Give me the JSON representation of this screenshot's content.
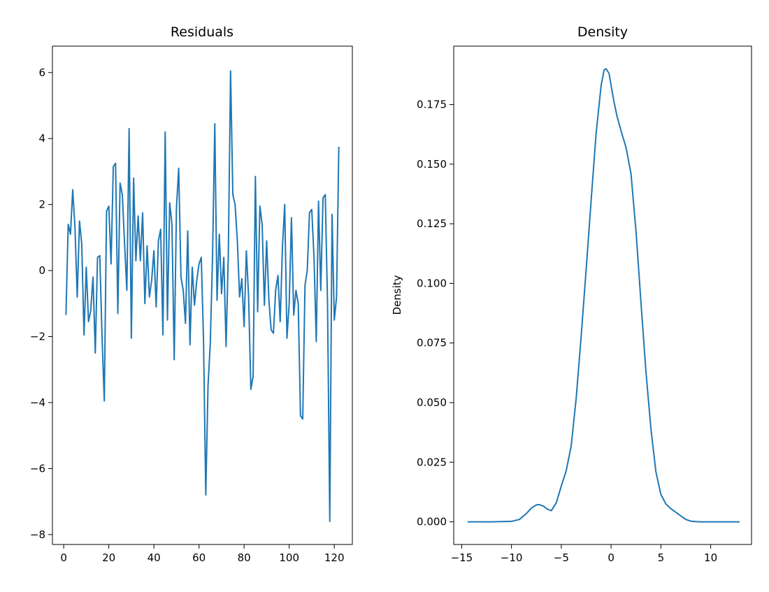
{
  "chart_data": [
    {
      "type": "line",
      "title": "Residuals",
      "xlabel": "",
      "ylabel": "",
      "xlim": [
        -5,
        128
      ],
      "ylim": [
        -8.3,
        6.8
      ],
      "xticks": [
        0,
        20,
        40,
        60,
        80,
        100,
        120
      ],
      "yticks": [
        -8,
        -6,
        -4,
        -2,
        0,
        2,
        4,
        6
      ],
      "xtick_labels": [
        "0",
        "20",
        "40",
        "60",
        "80",
        "100",
        "120"
      ],
      "ytick_labels": [
        "−8",
        "−6",
        "−4",
        "−2",
        "0",
        "2",
        "4",
        "6"
      ],
      "color": "#1f77b4",
      "grid": false,
      "series": [
        {
          "x": [
            1,
            2,
            3,
            4,
            5,
            6,
            7,
            8,
            9,
            10,
            11,
            12,
            13,
            14,
            15,
            16,
            17,
            18,
            19,
            20,
            21,
            22,
            23,
            24,
            25,
            26,
            27,
            28,
            29,
            30,
            31,
            32,
            33,
            34,
            35,
            36,
            37,
            38,
            39,
            40,
            41,
            42,
            43,
            44,
            45,
            46,
            47,
            48,
            49,
            50,
            51,
            52,
            53,
            54,
            55,
            56,
            57,
            58,
            59,
            60,
            61,
            62,
            63,
            64,
            65,
            66,
            67,
            68,
            69,
            70,
            71,
            72,
            73,
            74,
            75,
            76,
            77,
            78,
            79,
            80,
            81,
            82,
            83,
            84,
            85,
            86,
            87,
            88,
            89,
            90,
            91,
            92,
            93,
            94,
            95,
            96,
            97,
            98,
            99,
            100,
            101,
            102,
            103,
            104,
            105,
            106,
            107,
            108,
            109,
            110,
            111,
            112,
            113,
            114,
            115,
            116,
            117,
            118,
            119,
            120,
            121,
            122
          ],
          "y": [
            -1.35,
            1.4,
            1.1,
            2.45,
            1.3,
            -0.8,
            1.5,
            0.8,
            -1.95,
            0.1,
            -1.55,
            -1.2,
            -0.2,
            -2.5,
            0.4,
            0.45,
            -2.0,
            -3.95,
            1.8,
            1.95,
            0.2,
            3.15,
            3.25,
            -1.3,
            2.65,
            2.3,
            0.8,
            -0.6,
            4.3,
            -2.05,
            2.8,
            0.3,
            1.65,
            0.3,
            1.75,
            -1.0,
            0.75,
            -0.8,
            -0.3,
            0.6,
            -1.1,
            0.9,
            1.25,
            -1.95,
            4.2,
            -1.5,
            2.05,
            1.4,
            -2.7,
            1.9,
            3.1,
            -0.2,
            -0.6,
            -1.6,
            1.2,
            -2.25,
            0.1,
            -1.05,
            -0.3,
            0.2,
            0.4,
            -2.1,
            -6.8,
            -3.5,
            -2.2,
            0.4,
            4.45,
            -0.9,
            1.1,
            -0.7,
            0.4,
            -2.3,
            0.5,
            6.05,
            2.3,
            2.0,
            0.9,
            -0.8,
            -0.25,
            -1.7,
            0.6,
            -0.8,
            -3.6,
            -3.2,
            2.85,
            -1.25,
            1.95,
            1.4,
            -1.05,
            0.9,
            -0.9,
            -1.8,
            -1.9,
            -0.6,
            -0.15,
            -1.55,
            0.7,
            2.0,
            -2.05,
            -1.0,
            1.6,
            -1.35,
            -0.6,
            -1.0,
            -4.4,
            -4.5,
            -0.45,
            0.0,
            1.75,
            1.85,
            0.4,
            -2.15,
            2.1,
            -0.6,
            2.2,
            2.3,
            -1.0,
            -7.6,
            1.7,
            -1.5,
            -0.8,
            3.75
          ]
        }
      ]
    },
    {
      "type": "line",
      "title": "Density",
      "xlabel": "",
      "ylabel": "Density",
      "xlim": [
        -15.8,
        14.1
      ],
      "ylim": [
        -0.0095,
        0.1995
      ],
      "xticks": [
        -15,
        -10,
        -5,
        0,
        5,
        10
      ],
      "yticks": [
        0.0,
        0.025,
        0.05,
        0.075,
        0.1,
        0.125,
        0.15,
        0.175
      ],
      "xtick_labels": [
        "−15",
        "−10",
        "−5",
        "0",
        "5",
        "10"
      ],
      "ytick_labels": [
        "0.000",
        "0.025",
        "0.050",
        "0.075",
        "0.100",
        "0.125",
        "0.150",
        "0.175"
      ],
      "color": "#1f77b4",
      "grid": false,
      "series": [
        {
          "x": [
            -14.4,
            -12,
            -10,
            -9.2,
            -8.5,
            -8,
            -7.5,
            -7.2,
            -6.8,
            -6.4,
            -6.0,
            -5.5,
            -5.0,
            -4.5,
            -4.0,
            -3.5,
            -3.0,
            -2.5,
            -2.0,
            -1.5,
            -1.0,
            -0.7,
            -0.5,
            -0.2,
            0.0,
            0.3,
            0.6,
            1.0,
            1.5,
            2.0,
            2.5,
            3.0,
            3.5,
            4.0,
            4.5,
            5.0,
            5.5,
            6.0,
            6.5,
            7.0,
            7.5,
            8.0,
            8.5,
            9.0,
            10.0,
            11.0,
            12.9
          ],
          "y": [
            0,
            0,
            0.0002,
            0.001,
            0.0035,
            0.0058,
            0.0071,
            0.0072,
            0.0066,
            0.0053,
            0.0047,
            0.008,
            0.015,
            0.0215,
            0.032,
            0.052,
            0.078,
            0.106,
            0.135,
            0.163,
            0.183,
            0.1895,
            0.19,
            0.188,
            0.183,
            0.176,
            0.17,
            0.164,
            0.157,
            0.146,
            0.122,
            0.092,
            0.063,
            0.039,
            0.021,
            0.0115,
            0.0075,
            0.0055,
            0.004,
            0.0025,
            0.001,
            0.0003,
            0.0001,
            0,
            0,
            0,
            0
          ]
        }
      ]
    }
  ]
}
